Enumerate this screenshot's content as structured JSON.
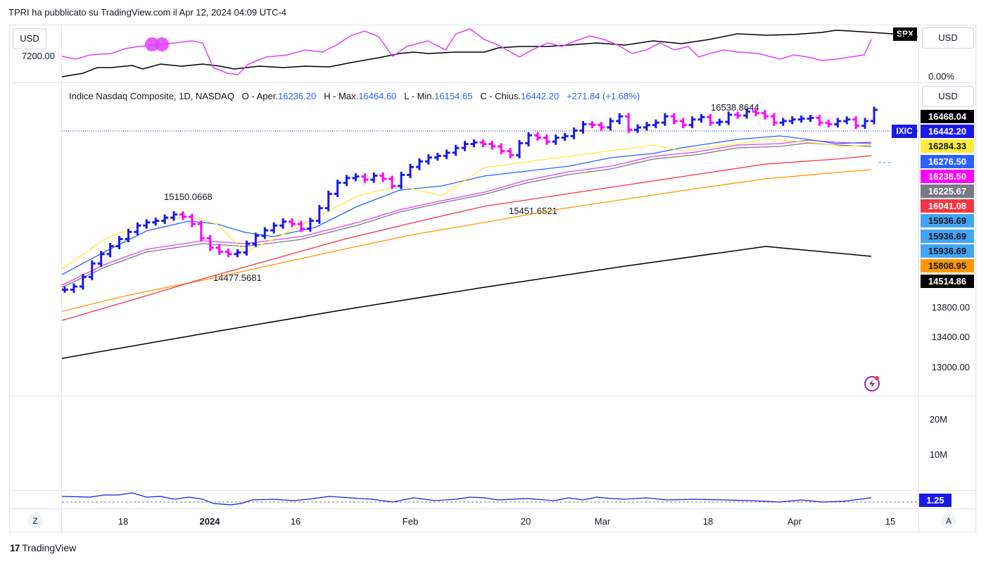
{
  "header": {
    "publish_line": "TPRI ha pubblicato su TradingView.com il Apr 12, 2024 04:09 UTC-4"
  },
  "top_pane": {
    "currency_left": "USD",
    "left_axis_label": "7200.00",
    "symbol_badge": "SPX",
    "currency_right": "USD",
    "right_axis_label": "0.00%"
  },
  "main_pane": {
    "currency": "USD",
    "legend": {
      "title": "Indice Nasdaq Composite, 1D, NASDAQ",
      "open_label": "O - Aper.",
      "open": "16236.20",
      "high_label": "H - Max.",
      "high": "16464.60",
      "low_label": "L - Min.",
      "low": "16154.65",
      "close_label": "C - Chius.",
      "close": "16442.20",
      "change": "+271.84 (+1.68%)"
    },
    "annotations": {
      "high_marker": "16538.8644",
      "pivot_1": "15150.0668",
      "pivot_2": "14477.5681",
      "pivot_3": "15451.6521"
    },
    "symbol_tag": "IXIC",
    "price_tags": [
      {
        "value": "16468.04",
        "bg": "#000000",
        "fg": "#ffffff"
      },
      {
        "value": "16442.20",
        "bg": "#1a1ae6",
        "fg": "#ffffff"
      },
      {
        "value": "16284.33",
        "bg": "#ffeb3b",
        "fg": "#131722"
      },
      {
        "value": "16276.50",
        "bg": "#2962ff",
        "fg": "#ffffff"
      },
      {
        "value": "16238.50",
        "bg": "#ff00ff",
        "fg": "#ffffff"
      },
      {
        "value": "16225.67",
        "bg": "#787b86",
        "fg": "#ffffff"
      },
      {
        "value": "16041.08",
        "bg": "#f23645",
        "fg": "#ffffff"
      },
      {
        "value": "15936.69",
        "bg": "#42a5f5",
        "fg": "#131722"
      },
      {
        "value": "15936.69",
        "bg": "#42a5f5",
        "fg": "#131722"
      },
      {
        "value": "15936.69",
        "bg": "#42a5f5",
        "fg": "#131722"
      },
      {
        "value": "15808.95",
        "bg": "#ff9800",
        "fg": "#131722"
      },
      {
        "value": "14514.86",
        "bg": "#000000",
        "fg": "#ffffff"
      }
    ],
    "axis_labels": [
      "13800.00",
      "13400.00",
      "13000.00"
    ]
  },
  "volume_pane": {
    "axis_labels": [
      "20M",
      "10M"
    ]
  },
  "ratio_pane": {
    "value": "1.25",
    "value_bg": "#1a1ae6"
  },
  "time_axis": {
    "labels": [
      "18",
      "2024",
      "16",
      "Feb",
      "20",
      "Mar",
      "18",
      "Apr",
      "15"
    ],
    "left_button": "Z",
    "right_button": "A"
  },
  "footer": {
    "brand": "TradingView"
  },
  "colors": {
    "bull_bar": "#1a1ae6",
    "bear_bar": "#ff00ff",
    "ema_fast": "#ffeb3b",
    "ema_blue": "#2962ff",
    "ema_magenta": "#e040fb",
    "sma_red": "#f23645",
    "sma_orange": "#ff9800",
    "sma_black": "#000000"
  },
  "chart_data": {
    "type": "line",
    "title": "Indice Nasdaq Composite, 1D, NASDAQ",
    "series": [
      {
        "values": [
          14170,
          14210,
          14330,
          14500,
          14620,
          14720,
          14810,
          14900,
          14980,
          15020,
          15040,
          15080,
          15120,
          15090,
          15000,
          14820,
          14700,
          14650,
          14620,
          14640,
          14750,
          14850,
          14920,
          14980,
          15030,
          15000,
          14940,
          15040,
          15200,
          15380,
          15520,
          15580,
          15600,
          15560,
          15610,
          15570,
          15480,
          15620,
          15720,
          15790,
          15840,
          15860,
          15900,
          15960,
          16010,
          16030,
          16010,
          15980,
          15920,
          15870,
          16020,
          16120,
          16090,
          16040,
          16090,
          16110,
          16180,
          16260,
          16250,
          16220,
          16300,
          16360,
          16190,
          16220,
          16250,
          16280,
          16360,
          16300,
          16250,
          16320,
          16350,
          16280,
          16290,
          16380,
          16370,
          16420,
          16400,
          16360,
          16280,
          16300,
          16320,
          16330,
          16340,
          16280,
          16260,
          16300,
          16320,
          16240,
          16300,
          16442
        ]
      },
      {
        "values": [
          14100,
          14140,
          14200,
          14260,
          14320,
          14380,
          14440,
          14500,
          14560,
          14610,
          14650,
          14680,
          14700,
          14690,
          14670,
          14640,
          14630,
          14640,
          14670,
          14710,
          14760,
          14820,
          14880,
          14940,
          15000,
          15060,
          15120,
          15170,
          15220,
          15270,
          15320,
          15370,
          15420,
          15470,
          15520,
          15570,
          15610,
          15650,
          15690,
          15730,
          15770,
          15810,
          15850,
          15880,
          15910,
          15940,
          15970,
          16000,
          16030,
          16060,
          16090,
          16110,
          16130,
          16150,
          16170,
          16190,
          16210,
          16230,
          16245,
          16255,
          16262,
          16268,
          16272,
          16276
        ]
      },
      {
        "values": [
          13660,
          13700,
          13745,
          13790,
          13835,
          13880,
          13925,
          13970,
          14015,
          14060,
          14105,
          14150,
          14195,
          14240,
          14285,
          14330,
          14375,
          14420,
          14465,
          14510,
          14555,
          14600,
          14645,
          14690,
          14735,
          14780,
          14825,
          14870,
          14915,
          14960,
          15005,
          15050,
          15095,
          15140,
          15185,
          15230,
          15275,
          15320,
          15365,
          15410,
          15455,
          15500,
          15545,
          15590,
          15635,
          15680,
          15725,
          15770,
          15815,
          15860,
          15905,
          15950,
          15995,
          16041
        ]
      },
      {
        "values": [
          12960,
          13000,
          13040,
          13080,
          13120,
          13160,
          13200,
          13240,
          13280,
          13320,
          13360,
          13400,
          13440,
          13480,
          13520,
          13560,
          13600,
          13640,
          13680,
          13720,
          13760,
          13800,
          13840,
          13880,
          13920,
          13960,
          14000,
          14040,
          14080,
          14120,
          14160,
          14200,
          14240,
          14280,
          14320,
          14360,
          14400,
          14440,
          14480,
          14514
        ]
      }
    ],
    "yticks": [
      "13800.00",
      "13400.00",
      "13000.00"
    ],
    "grid": false
  }
}
